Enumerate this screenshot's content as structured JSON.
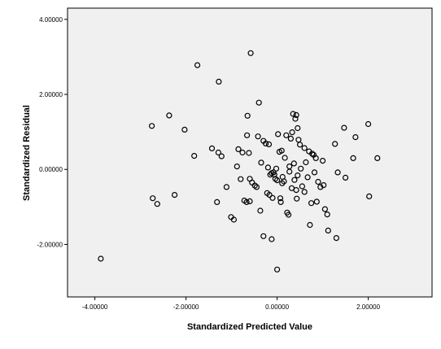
{
  "chart_data": {
    "type": "scatter",
    "title": "",
    "xlabel": "Standardized Predicted Value",
    "ylabel": "Standardized Residual",
    "xlim": [
      -4.6,
      3.4
    ],
    "ylim": [
      -3.4,
      4.3
    ],
    "x_ticks": [
      -4,
      -2,
      0,
      2
    ],
    "x_tick_labels": [
      "-4.00000",
      "-2.00000",
      "0.00000",
      "2.00000"
    ],
    "y_ticks": [
      -2,
      0,
      2,
      4
    ],
    "y_tick_labels": [
      "-2.00000",
      "0.00000",
      "2.00000",
      "4.00000"
    ],
    "grid": false,
    "colors": {
      "plot_background": "#f0f0f0",
      "page_background": "#ffffff",
      "marker": "#000000"
    },
    "marker": "open-circle",
    "x": [
      -3.87,
      -2.73,
      -2.75,
      -2.63,
      -2.37,
      -2.25,
      -2.03,
      -1.82,
      -1.75,
      -1.43,
      -1.32,
      -1.29,
      -1.28,
      -1.22,
      -1.11,
      -1.01,
      -0.95,
      -0.88,
      -0.85,
      -0.8,
      -0.76,
      -0.72,
      -0.67,
      -0.66,
      -0.62,
      -0.6,
      -0.6,
      -0.55,
      -0.49,
      -0.45,
      -0.42,
      -0.37,
      -0.35,
      -0.3,
      -0.25,
      -0.22,
      -0.2,
      -0.18,
      -0.17,
      -0.15,
      -0.12,
      -0.1,
      -0.08,
      -0.06,
      -0.04,
      -0.02,
      0.0,
      0.02,
      0.05,
      0.07,
      0.08,
      0.1,
      0.11,
      0.12,
      0.15,
      0.17,
      0.2,
      0.22,
      0.25,
      0.27,
      0.3,
      0.32,
      0.35,
      0.37,
      0.4,
      0.42,
      0.45,
      0.47,
      0.5,
      0.52,
      0.55,
      0.6,
      0.63,
      0.67,
      0.7,
      0.72,
      0.75,
      0.77,
      0.8,
      0.82,
      0.85,
      0.87,
      0.9,
      0.95,
      1.0,
      1.02,
      1.05,
      1.1,
      1.12,
      1.27,
      1.3,
      1.33,
      1.47,
      1.5,
      1.67,
      1.72,
      2.0,
      2.02,
      2.2,
      -0.65,
      -0.58,
      -0.4,
      -0.3,
      -0.12,
      0.0,
      0.33,
      0.43,
      0.45,
      0.38,
      0.42,
      0.27,
      0.6
    ],
    "y": [
      -2.38,
      -0.77,
      1.16,
      -0.92,
      1.44,
      -0.68,
      1.06,
      0.36,
      2.78,
      0.56,
      -0.87,
      0.45,
      2.34,
      0.35,
      -0.47,
      -1.27,
      -1.34,
      0.08,
      0.54,
      -0.26,
      0.45,
      -0.83,
      -0.87,
      0.91,
      0.44,
      -0.85,
      -0.25,
      -0.35,
      -0.43,
      -0.47,
      0.88,
      -1.1,
      0.18,
      0.76,
      0.69,
      -0.63,
      0.05,
      0.67,
      -0.68,
      -0.14,
      -0.1,
      -0.76,
      -0.08,
      -0.14,
      -0.25,
      0.02,
      -0.29,
      0.94,
      0.47,
      -0.77,
      -0.87,
      0.5,
      -0.37,
      -0.2,
      -0.32,
      0.31,
      0.91,
      -1.15,
      -1.21,
      0.08,
      0.82,
      -0.5,
      1.48,
      0.16,
      1.35,
      -0.55,
      -0.16,
      0.79,
      0.66,
      0.02,
      -0.45,
      0.57,
      0.19,
      -0.21,
      0.48,
      -1.48,
      -0.9,
      0.42,
      0.39,
      -0.08,
      0.3,
      -0.86,
      -0.33,
      -0.47,
      0.23,
      -0.42,
      -1.06,
      -1.2,
      -1.63,
      0.68,
      -1.83,
      -0.08,
      1.11,
      -0.22,
      0.3,
      0.86,
      1.21,
      -0.72,
      0.3,
      1.43,
      3.1,
      1.78,
      -1.78,
      -1.86,
      -2.67,
      0.99,
      -0.78,
      1.1,
      -0.28,
      1.45,
      -0.06,
      -0.6
    ]
  }
}
